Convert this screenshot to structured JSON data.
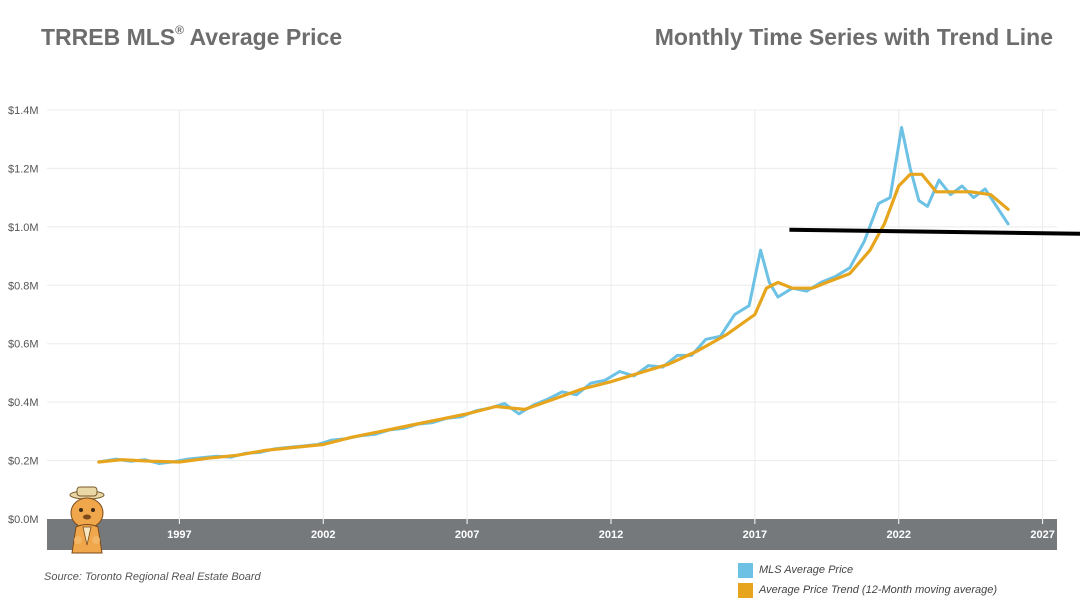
{
  "header": {
    "title_main": "TRREB MLS",
    "title_reg": "®",
    "title_rest": " Average Price",
    "subtitle": "Monthly Time Series with Trend Line"
  },
  "footer": {
    "source": "Source: Toronto Regional Real Estate Board"
  },
  "colors": {
    "price": "#6cc1e4",
    "trend": "#e7a51e",
    "axis_band": "#76797c",
    "grid": "#ececec",
    "reference_line": "#000000"
  },
  "chart_data": {
    "type": "line",
    "title": "TRREB MLS® Average Price",
    "subtitle": "Monthly Time Series with Trend Line",
    "xlim": [
      1992.4,
      2027.5
    ],
    "ylim": [
      0,
      1400000
    ],
    "y_ticks": [
      0,
      200000,
      400000,
      600000,
      800000,
      1000000,
      1200000,
      1400000
    ],
    "y_tick_labels": [
      "$0.0M",
      "$0.2M",
      "$0.4M",
      "$0.6M",
      "$0.8M",
      "$1.0M",
      "$1.2M",
      "$1.4M"
    ],
    "x_ticks": [
      1997,
      2002,
      2007,
      2012,
      2017,
      2022,
      2027
    ],
    "x_tick_labels": [
      "1997",
      "2002",
      "2007",
      "2012",
      "2017",
      "2022",
      "2027"
    ],
    "grid": true,
    "legend_position": "bottom-right",
    "series": [
      {
        "name": "MLS Average Price",
        "color": "#6cc1e4",
        "points": [
          [
            1994.2,
            195000
          ],
          [
            1994.8,
            205000
          ],
          [
            1995.3,
            198000
          ],
          [
            1995.8,
            203000
          ],
          [
            1996.3,
            190000
          ],
          [
            1996.8,
            196000
          ],
          [
            1997.3,
            205000
          ],
          [
            1997.8,
            210000
          ],
          [
            1998.3,
            215000
          ],
          [
            1998.8,
            212000
          ],
          [
            1999.3,
            225000
          ],
          [
            1999.8,
            228000
          ],
          [
            2000.3,
            240000
          ],
          [
            2000.8,
            245000
          ],
          [
            2001.3,
            250000
          ],
          [
            2001.8,
            255000
          ],
          [
            2002.3,
            270000
          ],
          [
            2002.8,
            275000
          ],
          [
            2003.3,
            285000
          ],
          [
            2003.8,
            290000
          ],
          [
            2004.3,
            305000
          ],
          [
            2004.8,
            310000
          ],
          [
            2005.3,
            325000
          ],
          [
            2005.8,
            330000
          ],
          [
            2006.3,
            345000
          ],
          [
            2006.8,
            350000
          ],
          [
            2007.3,
            370000
          ],
          [
            2007.8,
            380000
          ],
          [
            2008.3,
            395000
          ],
          [
            2008.8,
            360000
          ],
          [
            2009.3,
            390000
          ],
          [
            2009.8,
            410000
          ],
          [
            2010.3,
            435000
          ],
          [
            2010.8,
            425000
          ],
          [
            2011.3,
            465000
          ],
          [
            2011.8,
            475000
          ],
          [
            2012.3,
            505000
          ],
          [
            2012.8,
            490000
          ],
          [
            2013.3,
            525000
          ],
          [
            2013.8,
            520000
          ],
          [
            2014.3,
            560000
          ],
          [
            2014.8,
            560000
          ],
          [
            2015.3,
            615000
          ],
          [
            2015.8,
            625000
          ],
          [
            2016.3,
            700000
          ],
          [
            2016.8,
            730000
          ],
          [
            2017.2,
            920000
          ],
          [
            2017.5,
            810000
          ],
          [
            2017.8,
            760000
          ],
          [
            2018.3,
            790000
          ],
          [
            2018.8,
            780000
          ],
          [
            2019.3,
            810000
          ],
          [
            2019.8,
            830000
          ],
          [
            2020.3,
            860000
          ],
          [
            2020.8,
            950000
          ],
          [
            2021.3,
            1080000
          ],
          [
            2021.7,
            1100000
          ],
          [
            2022.1,
            1340000
          ],
          [
            2022.4,
            1200000
          ],
          [
            2022.7,
            1090000
          ],
          [
            2023.0,
            1070000
          ],
          [
            2023.4,
            1160000
          ],
          [
            2023.8,
            1110000
          ],
          [
            2024.2,
            1140000
          ],
          [
            2024.6,
            1100000
          ],
          [
            2025.0,
            1130000
          ],
          [
            2025.4,
            1070000
          ],
          [
            2025.8,
            1010000
          ]
        ]
      },
      {
        "name": "Average Price Trend (12-Month moving average)",
        "color": "#e7a51e",
        "points": [
          [
            1994.2,
            195000
          ],
          [
            1995.0,
            203000
          ],
          [
            1996.0,
            198000
          ],
          [
            1997.0,
            195000
          ],
          [
            1998.0,
            208000
          ],
          [
            1999.0,
            218000
          ],
          [
            2000.0,
            235000
          ],
          [
            2001.0,
            245000
          ],
          [
            2002.0,
            255000
          ],
          [
            2003.0,
            280000
          ],
          [
            2004.0,
            300000
          ],
          [
            2005.0,
            320000
          ],
          [
            2006.0,
            340000
          ],
          [
            2007.0,
            360000
          ],
          [
            2008.0,
            385000
          ],
          [
            2009.0,
            375000
          ],
          [
            2010.0,
            410000
          ],
          [
            2011.0,
            445000
          ],
          [
            2012.0,
            470000
          ],
          [
            2013.0,
            500000
          ],
          [
            2014.0,
            530000
          ],
          [
            2015.0,
            575000
          ],
          [
            2016.0,
            630000
          ],
          [
            2017.0,
            700000
          ],
          [
            2017.4,
            790000
          ],
          [
            2017.8,
            810000
          ],
          [
            2018.3,
            790000
          ],
          [
            2019.0,
            790000
          ],
          [
            2019.5,
            810000
          ],
          [
            2020.3,
            840000
          ],
          [
            2021.0,
            920000
          ],
          [
            2021.5,
            1010000
          ],
          [
            2022.0,
            1140000
          ],
          [
            2022.4,
            1180000
          ],
          [
            2022.8,
            1180000
          ],
          [
            2023.3,
            1120000
          ],
          [
            2023.8,
            1120000
          ],
          [
            2024.5,
            1120000
          ],
          [
            2025.2,
            1110000
          ],
          [
            2025.8,
            1060000
          ]
        ]
      }
    ],
    "annotations": [
      {
        "type": "horizontal_line",
        "y": 990000,
        "from_x": 2018.2,
        "to": "right-edge",
        "color": "#000000"
      }
    ]
  }
}
